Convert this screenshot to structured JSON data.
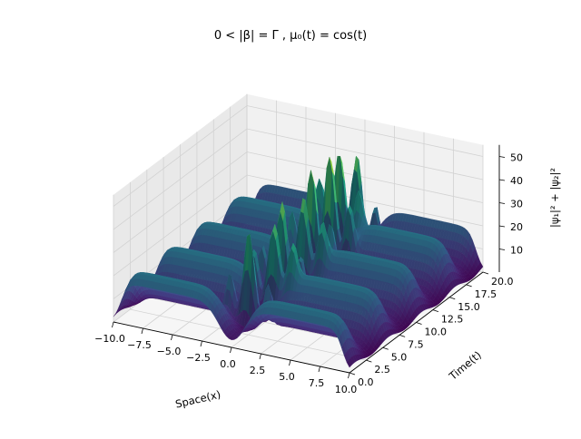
{
  "chart_data": {
    "type": "surface",
    "title": "0 < |β| = Γ ,  μ₀(t) = cos(t)",
    "xlabel": "Space(x)",
    "ylabel": "Time(t)",
    "zlabel": "|ψ₁|² + |ψ₂|²",
    "xlim": [
      -10,
      10
    ],
    "ylim": [
      0,
      20
    ],
    "zlim": [
      0,
      55
    ],
    "x_ticks": [
      "−10.0",
      "−7.5",
      "−5.0",
      "−2.5",
      "0.0",
      "2.5",
      "5.0",
      "7.5",
      "10.0"
    ],
    "y_ticks": [
      "0.0",
      "2.5",
      "5.0",
      "7.5",
      "10.0",
      "12.5",
      "15.0",
      "17.5",
      "20.0"
    ],
    "z_ticks": [
      "10",
      "20",
      "30",
      "40",
      "50"
    ],
    "colormap": "viridis",
    "grid": true,
    "background_plateau_value": 22,
    "peak_value": 52,
    "peaks": [
      {
        "x": -0.3,
        "t": 3.2,
        "z": 42
      },
      {
        "x": 0.4,
        "t": 5.6,
        "z": 38
      },
      {
        "x": -0.2,
        "t": 7.9,
        "z": 46
      },
      {
        "x": 0.3,
        "t": 10.2,
        "z": 40
      },
      {
        "x": -0.2,
        "t": 12.4,
        "z": 50
      },
      {
        "x": 0.2,
        "t": 14.4,
        "z": 52
      },
      {
        "x": -0.1,
        "t": 16.4,
        "z": 47
      },
      {
        "x": 0.3,
        "t": 18.2,
        "z": 44
      }
    ]
  }
}
